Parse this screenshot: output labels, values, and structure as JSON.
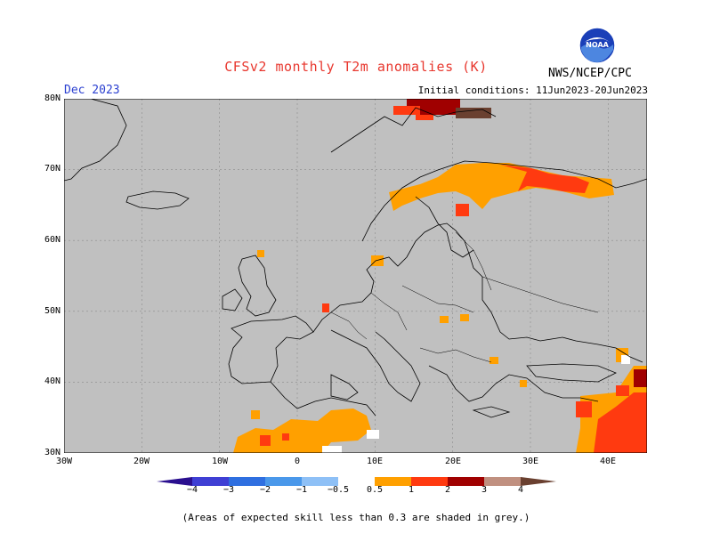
{
  "header": {
    "title": "CFSv2 monthly T2m anomalies (K)",
    "month": "Dec 2023",
    "initial_conditions": "Initial conditions: 11Jun2023-20Jun2023",
    "agency": "NWS/NCEP/CPC"
  },
  "logo": {
    "text": "NOAA"
  },
  "map": {
    "lat_labels": [
      "80N",
      "70N",
      "60N",
      "50N",
      "40N",
      "30N"
    ],
    "lon_labels": [
      "30W",
      "20W",
      "10W",
      "0",
      "10E",
      "20E",
      "30E",
      "40E"
    ],
    "background_color": "#c0c0c0",
    "coastline_color": "#000000"
  },
  "colorbar": {
    "labels": [
      "−4",
      "−3",
      "−2",
      "−1",
      "−0.5",
      "0.5",
      "1",
      "2",
      "3",
      "4"
    ],
    "colors": [
      "#2a0f8f",
      "#3f3fd4",
      "#2f6fe0",
      "#4a98ea",
      "#8ec0f6",
      "#ffffff",
      "#ffa000",
      "#ff3a10",
      "#a00000",
      "#c09080",
      "#6a4030"
    ]
  },
  "footer": {
    "note": "(Areas of expected skill less than 0.3 are shaded in grey.)"
  }
}
